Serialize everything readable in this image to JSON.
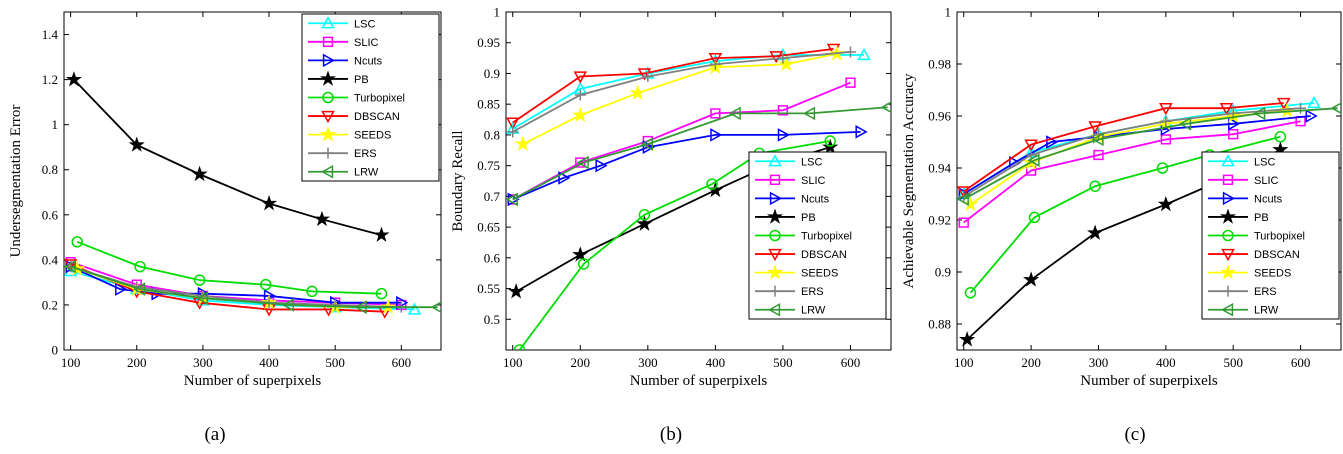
{
  "series_styles": [
    {
      "name": "LSC",
      "color": "#00ffff",
      "marker": "triangle-up"
    },
    {
      "name": "SLIC",
      "color": "#ff00ff",
      "marker": "square"
    },
    {
      "name": "Ncuts",
      "color": "#0000ff",
      "marker": "triangle-right"
    },
    {
      "name": "PB",
      "color": "#000000",
      "marker": "star"
    },
    {
      "name": "Turbopixel",
      "color": "#00dd00",
      "marker": "circle"
    },
    {
      "name": "DBSCAN",
      "color": "#ff0000",
      "marker": "triangle-down"
    },
    {
      "name": "SEEDS",
      "color": "#ffff00",
      "marker": "star"
    },
    {
      "name": "ERS",
      "color": "#808080",
      "marker": "plus"
    },
    {
      "name": "LRW",
      "color": "#339933",
      "marker": "triangle-left"
    }
  ],
  "chart_data": [
    {
      "type": "line",
      "caption": "(a)",
      "xlabel": "Number of superpixels",
      "ylabel": "Undersegmentation Error",
      "xlim": [
        90,
        660
      ],
      "ylim": [
        0,
        1.5
      ],
      "xticks": [
        "100",
        "200",
        "300",
        "400",
        "500",
        "600"
      ],
      "yticks": [
        "0",
        "0.2",
        "0.4",
        "0.6",
        "0.8",
        "1",
        "1.2",
        "1.4"
      ],
      "grid": false,
      "legend_position": "top-right",
      "series": [
        {
          "name": "LSC",
          "x": [
            100,
            200,
            300,
            400,
            500,
            620
          ],
          "y": [
            0.35,
            0.27,
            0.22,
            0.2,
            0.19,
            0.18
          ]
        },
        {
          "name": "SLIC",
          "x": [
            100,
            200,
            300,
            400,
            500,
            600
          ],
          "y": [
            0.39,
            0.29,
            0.24,
            0.22,
            0.21,
            0.2
          ]
        },
        {
          "name": "Ncuts",
          "x": [
            100,
            175,
            230,
            300,
            400,
            500,
            600
          ],
          "y": [
            0.37,
            0.27,
            0.25,
            0.25,
            0.24,
            0.21,
            0.21
          ]
        },
        {
          "name": "PB",
          "x": [
            105,
            200,
            295,
            400,
            480,
            570
          ],
          "y": [
            1.2,
            0.91,
            0.78,
            0.65,
            0.58,
            0.51
          ]
        },
        {
          "name": "Turbopixel",
          "x": [
            110,
            205,
            295,
            395,
            465,
            570
          ],
          "y": [
            0.48,
            0.37,
            0.31,
            0.29,
            0.26,
            0.25
          ]
        },
        {
          "name": "DBSCAN",
          "x": [
            100,
            200,
            295,
            400,
            490,
            575
          ],
          "y": [
            0.38,
            0.26,
            0.21,
            0.18,
            0.18,
            0.17
          ]
        },
        {
          "name": "SEEDS",
          "x": [
            110,
            200,
            300,
            400,
            500,
            580
          ],
          "y": [
            0.36,
            0.27,
            0.23,
            0.21,
            0.19,
            0.19
          ]
        },
        {
          "name": "ERS",
          "x": [
            100,
            200,
            300,
            400,
            500,
            600
          ],
          "y": [
            0.37,
            0.28,
            0.24,
            0.21,
            0.2,
            0.19
          ]
        },
        {
          "name": "LRW",
          "x": [
            100,
            205,
            300,
            430,
            540,
            655
          ],
          "y": [
            0.37,
            0.27,
            0.23,
            0.2,
            0.19,
            0.19
          ]
        }
      ]
    },
    {
      "type": "line",
      "caption": "(b)",
      "xlabel": "Number of superpixels",
      "ylabel": "Boundary Recall",
      "xlim": [
        90,
        660
      ],
      "ylim": [
        0.45,
        1
      ],
      "xticks": [
        "100",
        "200",
        "300",
        "400",
        "500",
        "600"
      ],
      "yticks": [
        "0.5",
        "0.55",
        "0.6",
        "0.65",
        "0.7",
        "0.75",
        "0.8",
        "0.85",
        "0.9",
        "0.95",
        "1"
      ],
      "grid": false,
      "legend_position": "bottom-right",
      "series": [
        {
          "name": "LSC",
          "x": [
            100,
            200,
            300,
            400,
            500,
            620
          ],
          "y": [
            0.81,
            0.875,
            0.9,
            0.92,
            0.93,
            0.93
          ]
        },
        {
          "name": "SLIC",
          "x": [
            100,
            200,
            300,
            400,
            500,
            600
          ],
          "y": [
            0.695,
            0.755,
            0.79,
            0.835,
            0.84,
            0.885
          ]
        },
        {
          "name": "Ncuts",
          "x": [
            100,
            175,
            230,
            300,
            400,
            500,
            615
          ],
          "y": [
            0.695,
            0.73,
            0.75,
            0.78,
            0.8,
            0.8,
            0.805
          ]
        },
        {
          "name": "PB",
          "x": [
            105,
            200,
            295,
            400,
            480,
            570
          ],
          "y": [
            0.545,
            0.605,
            0.655,
            0.71,
            0.75,
            0.78
          ]
        },
        {
          "name": "Turbopixel",
          "x": [
            110,
            205,
            295,
            395,
            465,
            570
          ],
          "y": [
            0.45,
            0.59,
            0.67,
            0.72,
            0.77,
            0.79
          ]
        },
        {
          "name": "DBSCAN",
          "x": [
            100,
            200,
            295,
            400,
            490,
            575
          ],
          "y": [
            0.82,
            0.895,
            0.9,
            0.925,
            0.928,
            0.94
          ]
        },
        {
          "name": "SEEDS",
          "x": [
            115,
            200,
            285,
            400,
            505,
            580
          ],
          "y": [
            0.785,
            0.832,
            0.868,
            0.91,
            0.915,
            0.932
          ]
        },
        {
          "name": "ERS",
          "x": [
            100,
            200,
            300,
            400,
            500,
            600
          ],
          "y": [
            0.805,
            0.865,
            0.895,
            0.915,
            0.925,
            0.935
          ]
        },
        {
          "name": "LRW",
          "x": [
            100,
            205,
            300,
            430,
            540,
            655
          ],
          "y": [
            0.695,
            0.755,
            0.785,
            0.835,
            0.835,
            0.845
          ]
        }
      ]
    },
    {
      "type": "line",
      "caption": "(c)",
      "xlabel": "Number of superpixels",
      "ylabel": "Achievable Segmentation Accuracy",
      "xlim": [
        90,
        660
      ],
      "ylim": [
        0.87,
        1
      ],
      "xticks": [
        "100",
        "200",
        "300",
        "400",
        "500",
        "600"
      ],
      "yticks": [
        "0.88",
        "0.9",
        "0.92",
        "0.94",
        "0.96",
        "0.98",
        "1"
      ],
      "grid": false,
      "legend_position": "bottom-right",
      "series": [
        {
          "name": "LSC",
          "x": [
            100,
            200,
            300,
            400,
            500,
            620
          ],
          "y": [
            0.93,
            0.946,
            0.953,
            0.958,
            0.962,
            0.965
          ]
        },
        {
          "name": "SLIC",
          "x": [
            100,
            200,
            300,
            400,
            500,
            600
          ],
          "y": [
            0.919,
            0.939,
            0.945,
            0.951,
            0.953,
            0.958
          ]
        },
        {
          "name": "Ncuts",
          "x": [
            100,
            175,
            230,
            300,
            400,
            500,
            615
          ],
          "y": [
            0.93,
            0.942,
            0.95,
            0.952,
            0.955,
            0.957,
            0.96
          ]
        },
        {
          "name": "PB",
          "x": [
            105,
            200,
            295,
            400,
            480,
            570
          ],
          "y": [
            0.874,
            0.897,
            0.915,
            0.926,
            0.935,
            0.947
          ]
        },
        {
          "name": "Turbopixel",
          "x": [
            110,
            205,
            295,
            395,
            465,
            570
          ],
          "y": [
            0.892,
            0.921,
            0.933,
            0.94,
            0.945,
            0.952
          ]
        },
        {
          "name": "DBSCAN",
          "x": [
            100,
            200,
            295,
            400,
            490,
            575
          ],
          "y": [
            0.931,
            0.949,
            0.956,
            0.963,
            0.963,
            0.965
          ]
        },
        {
          "name": "SEEDS",
          "x": [
            110,
            200,
            300,
            400,
            500,
            580
          ],
          "y": [
            0.926,
            0.942,
            0.952,
            0.957,
            0.96,
            0.962
          ]
        },
        {
          "name": "ERS",
          "x": [
            100,
            200,
            300,
            400,
            500,
            600
          ],
          "y": [
            0.929,
            0.945,
            0.953,
            0.958,
            0.961,
            0.963
          ]
        },
        {
          "name": "LRW",
          "x": [
            100,
            205,
            300,
            430,
            540,
            655
          ],
          "y": [
            0.928,
            0.943,
            0.951,
            0.957,
            0.961,
            0.963
          ]
        }
      ]
    }
  ]
}
